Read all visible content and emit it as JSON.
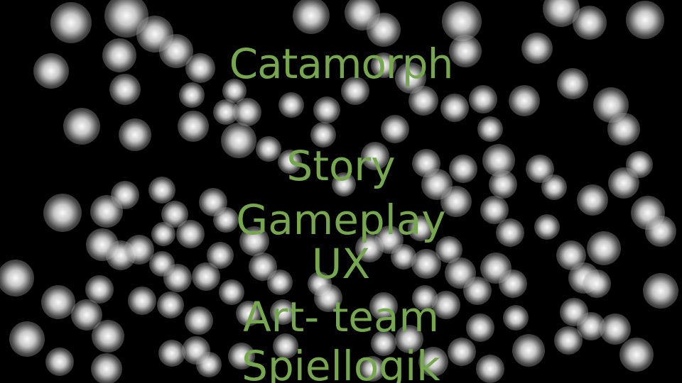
{
  "title": "Catamorph",
  "menu": {
    "items": [
      {
        "label": "Story"
      },
      {
        "label": "Gameplay"
      },
      {
        "label": "UX"
      },
      {
        "label": "Art- team"
      },
      {
        "label": "Spiellogik"
      }
    ]
  },
  "colors": {
    "background": "#000000",
    "text": "#76a64d",
    "bokeh": "#ffffff"
  }
}
